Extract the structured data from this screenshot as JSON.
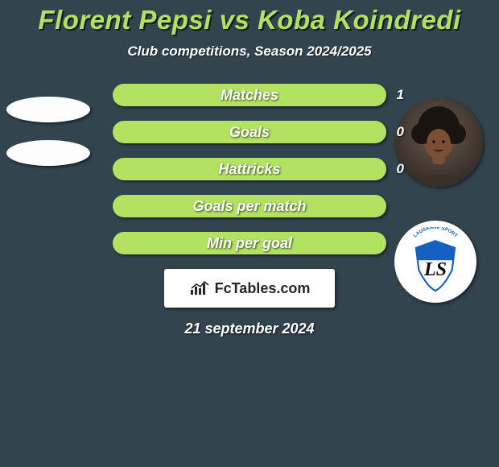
{
  "title": {
    "text": "Florent Pepsi vs Koba Koindredi",
    "fontsize": 33,
    "color": "#b2e261"
  },
  "subtitle": {
    "text": "Club competitions, Season 2024/2025",
    "fontsize": 17,
    "color": "#ffffff"
  },
  "bars": {
    "fill_color": "#b2e261",
    "label_fontsize": 18,
    "value_fontsize": 17,
    "rows": [
      {
        "label": "Matches",
        "value": "1"
      },
      {
        "label": "Goals",
        "value": "0"
      },
      {
        "label": "Hattricks",
        "value": "0"
      },
      {
        "label": "Goals per match",
        "value": ""
      },
      {
        "label": "Min per goal",
        "value": ""
      }
    ]
  },
  "left_placeholders": {
    "count": 2,
    "color": "#fdfdfd"
  },
  "player_photo": {
    "bg_gradient_top": "#2a2421",
    "bg_gradient_bottom": "#6a5a4b",
    "skin": "#7a4f33",
    "hair": "#1a1410"
  },
  "club_badge": {
    "bg": "#ffffff",
    "shield_top": "#1660c2",
    "shield_bottom": "#ffffff",
    "shield_outline": "#1660c2",
    "letters": "LS",
    "letters_color": "#0e0e0e",
    "banner_text": "LAUSANNE SPORT",
    "banner_color": "#1660c2"
  },
  "watermark": {
    "text": "FcTables.com",
    "fontsize": 18,
    "icon_color": "#262626"
  },
  "date": {
    "text": "21 september 2024",
    "fontsize": 18,
    "color": "#ffffff"
  },
  "background": "#32454f"
}
